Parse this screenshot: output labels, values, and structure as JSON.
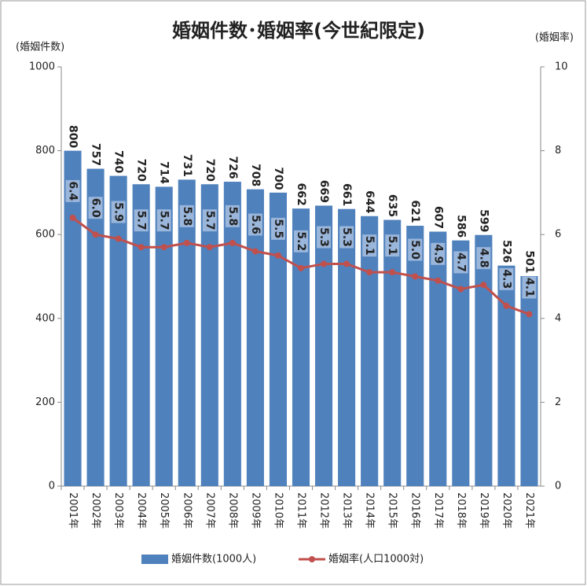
{
  "chart_data": {
    "type": "bar",
    "title": "婚姻件数･婚姻率(今世紀限定)",
    "y_label": "(婚姻件数)",
    "y2_label": "(婚姻率)",
    "categories": [
      "2001年",
      "2002年",
      "2003年",
      "2004年",
      "2005年",
      "2006年",
      "2007年",
      "2008年",
      "2009年",
      "2010年",
      "2011年",
      "2012年",
      "2013年",
      "2014年",
      "2015年",
      "2016年",
      "2017年",
      "2018年",
      "2019年",
      "2020年",
      "2021年"
    ],
    "series": [
      {
        "name": "婚姻件数(1000人)",
        "type": "bar",
        "color": "#4f81bd",
        "values": [
          800,
          757,
          740,
          720,
          714,
          731,
          720,
          726,
          708,
          700,
          662,
          669,
          661,
          644,
          635,
          621,
          607,
          586,
          599,
          526,
          501
        ]
      },
      {
        "name": "婚姻率(人口1000対)",
        "type": "line",
        "axis": "y2",
        "color": "#c0504d",
        "values": [
          6.4,
          6.0,
          5.9,
          5.7,
          5.7,
          5.8,
          5.7,
          5.8,
          5.6,
          5.5,
          5.2,
          5.3,
          5.3,
          5.1,
          5.1,
          5.0,
          4.9,
          4.7,
          4.8,
          4.3,
          4.1
        ],
        "value_labels": [
          "6.4",
          "6.0",
          "5.9",
          "5.7",
          "5.7",
          "5.8",
          "5.7",
          "5.8",
          "5.6",
          "5.5",
          "5.2",
          "5.3",
          "5.3",
          "5.1",
          "5.1",
          "5.0",
          "4.9",
          "4.7",
          "4.8",
          "4.3",
          "4.1"
        ]
      }
    ],
    "ylim": [
      0,
      1000
    ],
    "yticks": [
      0,
      200,
      400,
      600,
      800,
      1000
    ],
    "y2lim": [
      0,
      10
    ],
    "y2ticks": [
      0,
      2,
      4,
      6,
      8,
      10
    ],
    "grid": false
  }
}
